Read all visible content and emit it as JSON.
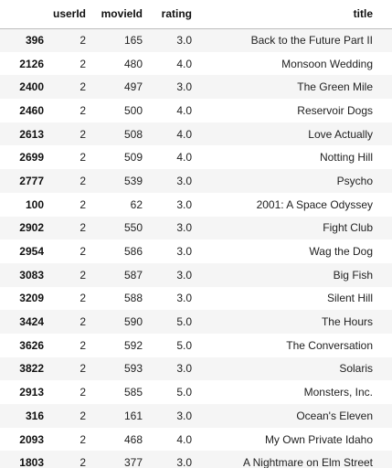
{
  "table": {
    "columns": [
      "userId",
      "movieId",
      "rating",
      "title"
    ],
    "rows": [
      {
        "index": "396",
        "userId": "2",
        "movieId": "165",
        "rating": "3.0",
        "title": "Back to the Future Part II"
      },
      {
        "index": "2126",
        "userId": "2",
        "movieId": "480",
        "rating": "4.0",
        "title": "Monsoon Wedding"
      },
      {
        "index": "2400",
        "userId": "2",
        "movieId": "497",
        "rating": "3.0",
        "title": "The Green Mile"
      },
      {
        "index": "2460",
        "userId": "2",
        "movieId": "500",
        "rating": "4.0",
        "title": "Reservoir Dogs"
      },
      {
        "index": "2613",
        "userId": "2",
        "movieId": "508",
        "rating": "4.0",
        "title": "Love Actually"
      },
      {
        "index": "2699",
        "userId": "2",
        "movieId": "509",
        "rating": "4.0",
        "title": "Notting Hill"
      },
      {
        "index": "2777",
        "userId": "2",
        "movieId": "539",
        "rating": "3.0",
        "title": "Psycho"
      },
      {
        "index": "100",
        "userId": "2",
        "movieId": "62",
        "rating": "3.0",
        "title": "2001: A Space Odyssey"
      },
      {
        "index": "2902",
        "userId": "2",
        "movieId": "550",
        "rating": "3.0",
        "title": "Fight Club"
      },
      {
        "index": "2954",
        "userId": "2",
        "movieId": "586",
        "rating": "3.0",
        "title": "Wag the Dog"
      },
      {
        "index": "3083",
        "userId": "2",
        "movieId": "587",
        "rating": "3.0",
        "title": "Big Fish"
      },
      {
        "index": "3209",
        "userId": "2",
        "movieId": "588",
        "rating": "3.0",
        "title": "Silent Hill"
      },
      {
        "index": "3424",
        "userId": "2",
        "movieId": "590",
        "rating": "5.0",
        "title": "The Hours"
      },
      {
        "index": "3626",
        "userId": "2",
        "movieId": "592",
        "rating": "5.0",
        "title": "The Conversation"
      },
      {
        "index": "3822",
        "userId": "2",
        "movieId": "593",
        "rating": "3.0",
        "title": "Solaris"
      },
      {
        "index": "2913",
        "userId": "2",
        "movieId": "585",
        "rating": "5.0",
        "title": "Monsters, Inc."
      },
      {
        "index": "316",
        "userId": "2",
        "movieId": "161",
        "rating": "3.0",
        "title": "Ocean's Eleven"
      },
      {
        "index": "2093",
        "userId": "2",
        "movieId": "468",
        "rating": "4.0",
        "title": "My Own Private Idaho"
      },
      {
        "index": "1803",
        "userId": "2",
        "movieId": "377",
        "rating": "3.0",
        "title": "A Nightmare on Elm Street"
      }
    ]
  },
  "colors": {
    "stripe": "#f5f5f5",
    "background": "#ffffff",
    "header_rule": "#bdbdbd",
    "text": "#222222"
  }
}
